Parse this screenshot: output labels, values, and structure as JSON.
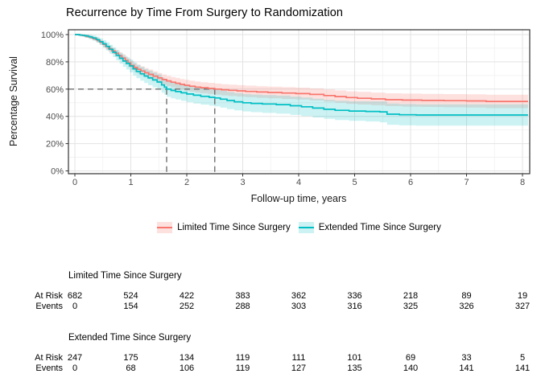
{
  "chart_data": {
    "type": "line",
    "subtype": "kaplan-meier-step",
    "title": "Recurrence by Time From Surgery to Randomization",
    "xlabel": "Follow-up time, years",
    "ylabel": "Percentage Survival",
    "xlim": [
      0,
      8
    ],
    "ylim": [
      0,
      100
    ],
    "grid": "major-and-minor",
    "legend_position": "bottom",
    "x_ticks": [
      0,
      1,
      2,
      3,
      4,
      5,
      6,
      7,
      8
    ],
    "x_tick_labels": [
      "0",
      "1",
      "2",
      "3",
      "4",
      "5",
      "6",
      "7",
      "8"
    ],
    "y_ticks": [
      0,
      20,
      40,
      60,
      80,
      100
    ],
    "y_tick_labels": [
      "0%",
      "20%",
      "40%",
      "60%",
      "80%",
      "100%"
    ],
    "reference_lines": {
      "horizontal_pct": 60,
      "vertical_times": [
        1.64,
        2.5
      ],
      "color": "#707070",
      "style": "dashed"
    },
    "series": [
      {
        "name": "Limited Time Since Surgery",
        "color": "#F8766D",
        "band_fill": "rgba(248,118,109,0.22)",
        "points": [
          [
            0,
            100
          ],
          [
            0.07,
            99.7
          ],
          [
            0.13,
            99.3
          ],
          [
            0.2,
            98.6
          ],
          [
            0.27,
            97.8
          ],
          [
            0.33,
            96.9
          ],
          [
            0.4,
            95.6
          ],
          [
            0.45,
            94.3
          ],
          [
            0.5,
            92.8
          ],
          [
            0.55,
            91.2
          ],
          [
            0.6,
            89.6
          ],
          [
            0.66,
            88
          ],
          [
            0.72,
            86.3
          ],
          [
            0.78,
            84.5
          ],
          [
            0.84,
            82.8
          ],
          [
            0.9,
            81
          ],
          [
            0.95,
            79.2
          ],
          [
            1.0,
            77.4
          ],
          [
            1.06,
            75.8
          ],
          [
            1.12,
            74.5
          ],
          [
            1.18,
            73.3
          ],
          [
            1.25,
            72
          ],
          [
            1.32,
            70.8
          ],
          [
            1.4,
            69.5
          ],
          [
            1.48,
            68.2
          ],
          [
            1.56,
            67
          ],
          [
            1.64,
            66
          ],
          [
            1.72,
            65.1
          ],
          [
            1.8,
            64.3
          ],
          [
            1.88,
            63.5
          ],
          [
            1.96,
            62.8
          ],
          [
            2.05,
            62.1
          ],
          [
            2.15,
            61.5
          ],
          [
            2.25,
            61
          ],
          [
            2.38,
            60.5
          ],
          [
            2.5,
            60
          ],
          [
            2.62,
            59.5
          ],
          [
            2.75,
            59.1
          ],
          [
            2.9,
            58.7
          ],
          [
            3.05,
            58.3
          ],
          [
            3.25,
            57.9
          ],
          [
            3.45,
            57.5
          ],
          [
            3.7,
            57.1
          ],
          [
            3.95,
            56.7
          ],
          [
            4.2,
            56.1
          ],
          [
            4.45,
            55.3
          ],
          [
            4.65,
            54.5
          ],
          [
            4.85,
            53.8
          ],
          [
            5.05,
            53.3
          ],
          [
            5.3,
            52.8
          ],
          [
            5.55,
            52.2
          ],
          [
            5.85,
            51.9
          ],
          [
            6.2,
            51.7
          ],
          [
            6.6,
            51.5
          ],
          [
            7.0,
            51.3
          ],
          [
            7.35,
            51.0
          ],
          [
            8.1,
            51.0
          ]
        ],
        "band_halfwidth": [
          [
            0,
            0.4
          ],
          [
            0.3,
            1.2
          ],
          [
            0.6,
            2.2
          ],
          [
            1,
            3.2
          ],
          [
            1.5,
            3.7
          ],
          [
            2,
            4
          ],
          [
            3,
            4.2
          ],
          [
            4,
            4.4
          ],
          [
            5,
            4.6
          ],
          [
            6,
            4.8
          ],
          [
            8.1,
            5.0
          ]
        ]
      },
      {
        "name": "Extended Time Since Surgery",
        "color": "#00BFC4",
        "band_fill": "rgba(0,191,196,0.20)",
        "points": [
          [
            0,
            100
          ],
          [
            0.09,
            99.6
          ],
          [
            0.17,
            99.1
          ],
          [
            0.24,
            98.4
          ],
          [
            0.31,
            97.5
          ],
          [
            0.38,
            96.3
          ],
          [
            0.44,
            94.8
          ],
          [
            0.5,
            93.2
          ],
          [
            0.56,
            91.3
          ],
          [
            0.62,
            89.2
          ],
          [
            0.68,
            87
          ],
          [
            0.74,
            84.8
          ],
          [
            0.8,
            82.6
          ],
          [
            0.86,
            80.6
          ],
          [
            0.92,
            78.8
          ],
          [
            0.98,
            77
          ],
          [
            1.04,
            74.8
          ],
          [
            1.1,
            72.9
          ],
          [
            1.17,
            71.2
          ],
          [
            1.24,
            69.6
          ],
          [
            1.31,
            68.2
          ],
          [
            1.39,
            66.7
          ],
          [
            1.47,
            65.2
          ],
          [
            1.55,
            63
          ],
          [
            1.6,
            61.5
          ],
          [
            1.64,
            60
          ],
          [
            1.72,
            59
          ],
          [
            1.8,
            58.2
          ],
          [
            1.9,
            57.3
          ],
          [
            2.0,
            56.4
          ],
          [
            2.12,
            55.5
          ],
          [
            2.25,
            54.7
          ],
          [
            2.4,
            54
          ],
          [
            2.5,
            53.5
          ],
          [
            2.6,
            52.6
          ],
          [
            2.72,
            51.6
          ],
          [
            2.85,
            50.7
          ],
          [
            3.0,
            50
          ],
          [
            3.15,
            49.5
          ],
          [
            3.35,
            49.1
          ],
          [
            3.6,
            48.6
          ],
          [
            3.85,
            47.8
          ],
          [
            4.05,
            47
          ],
          [
            4.25,
            46.1
          ],
          [
            4.45,
            45.2
          ],
          [
            4.65,
            44.4
          ],
          [
            4.9,
            43.9
          ],
          [
            5.2,
            43.6
          ],
          [
            5.45,
            43.3
          ],
          [
            5.58,
            41.6
          ],
          [
            5.8,
            41.2
          ],
          [
            6.1,
            41.0
          ],
          [
            8.1,
            41.0
          ]
        ],
        "band_halfwidth": [
          [
            0,
            0.6
          ],
          [
            0.3,
            1.8
          ],
          [
            0.6,
            3.2
          ],
          [
            1,
            4.8
          ],
          [
            1.5,
            5.6
          ],
          [
            2,
            6
          ],
          [
            3,
            6.4
          ],
          [
            4,
            6.8
          ],
          [
            5,
            7.2
          ],
          [
            5.6,
            7.8
          ],
          [
            8.1,
            8.0
          ]
        ]
      }
    ]
  },
  "risk_tables": [
    {
      "title": "Limited Time Since Surgery",
      "rows": [
        {
          "label": "At Risk",
          "values": [
            "682",
            "524",
            "422",
            "383",
            "362",
            "336",
            "218",
            "89",
            "19"
          ]
        },
        {
          "label": "Events",
          "values": [
            "0",
            "154",
            "252",
            "288",
            "303",
            "316",
            "325",
            "326",
            "327"
          ]
        }
      ]
    },
    {
      "title": "Extended Time Since Surgery",
      "rows": [
        {
          "label": "At Risk",
          "values": [
            "247",
            "175",
            "134",
            "119",
            "111",
            "101",
            "69",
            "33",
            "5"
          ]
        },
        {
          "label": "Events",
          "values": [
            "0",
            "68",
            "106",
            "119",
            "127",
            "135",
            "140",
            "141",
            "141"
          ]
        }
      ]
    }
  ]
}
